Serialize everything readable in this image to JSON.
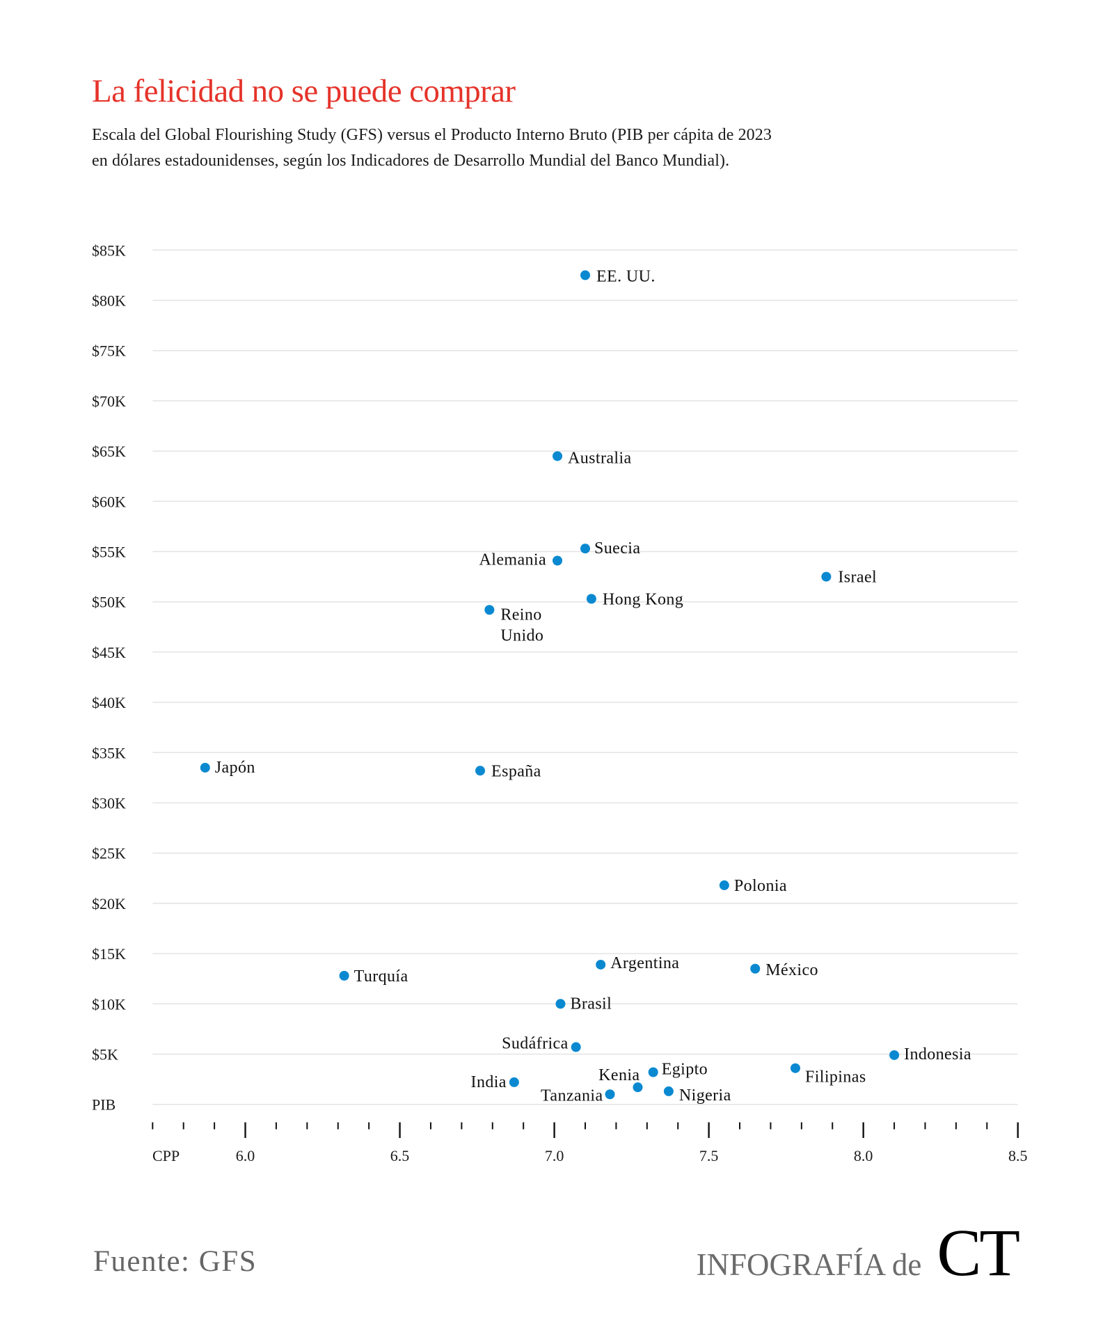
{
  "header": {
    "title": "La felicidad no se puede comprar",
    "subtitle_line1": "Escala del Global Flourishing Study (GFS) versus el Producto Interno Bruto (PIB per cápita de 2023",
    "subtitle_line2": "en dólares estadounidenses, según los Indicadores de Desarrollo Mundial del Banco Mundial)."
  },
  "footer": {
    "source": "Fuente: GFS",
    "credit_text": "INFOGRAFÍA de",
    "credit_logo": "CT"
  },
  "colors": {
    "title": "#e5332a",
    "point": "#0a89d1",
    "grid": "#e3e3e3",
    "text": "#1a1a1a",
    "footer": "#666666"
  },
  "chart_data": {
    "type": "scatter",
    "title": "La felicidad no se puede comprar",
    "xlabel": "CPP",
    "ylabel": "PIB",
    "xlim": [
      5.7,
      8.5
    ],
    "ylim": [
      0,
      85000
    ],
    "grid": true,
    "legend": "none",
    "x_ticks_major": [
      6.0,
      6.5,
      7.0,
      7.5,
      8.0,
      8.5
    ],
    "x_tick_labels": [
      "6.0",
      "6.5",
      "7.0",
      "7.5",
      "8.0",
      "8.5"
    ],
    "x_ticks_minor_step": 0.1,
    "y_ticks": [
      0,
      5000,
      10000,
      15000,
      20000,
      25000,
      30000,
      35000,
      40000,
      45000,
      50000,
      55000,
      60000,
      65000,
      70000,
      75000,
      80000,
      85000
    ],
    "y_tick_labels": [
      "PIB",
      "$5K",
      "$10K",
      "$15K",
      "$20K",
      "$25K",
      "$30K",
      "$35K",
      "$40K",
      "$45K",
      "$50K",
      "$55K",
      "$60K",
      "$65K",
      "$70K",
      "$75K",
      "$80K",
      "$85K"
    ],
    "points": [
      {
        "label": "EE. UU.",
        "x": 7.1,
        "y": 82500
      },
      {
        "label": "Australia",
        "x": 7.01,
        "y": 64500
      },
      {
        "label": "Suecia",
        "x": 7.1,
        "y": 55300
      },
      {
        "label": "Alemania",
        "x": 7.01,
        "y": 54100
      },
      {
        "label": "Israel",
        "x": 7.88,
        "y": 52500
      },
      {
        "label": "Hong Kong",
        "x": 7.12,
        "y": 50300
      },
      {
        "label": "Reino Unido",
        "label_lines": [
          "Reino",
          "Unido"
        ],
        "x": 6.79,
        "y": 49200
      },
      {
        "label": "Japón",
        "x": 5.87,
        "y": 33500
      },
      {
        "label": "España",
        "x": 6.76,
        "y": 33200
      },
      {
        "label": "Polonia",
        "x": 7.55,
        "y": 21800
      },
      {
        "label": "Argentina",
        "x": 7.15,
        "y": 13900
      },
      {
        "label": "México",
        "x": 7.65,
        "y": 13500
      },
      {
        "label": "Turquía",
        "x": 6.32,
        "y": 12800
      },
      {
        "label": "Brasil",
        "x": 7.02,
        "y": 10000
      },
      {
        "label": "Sudáfrica",
        "x": 7.07,
        "y": 5700
      },
      {
        "label": "Indonesia",
        "x": 8.1,
        "y": 4900
      },
      {
        "label": "Filipinas",
        "x": 7.78,
        "y": 3600
      },
      {
        "label": "Egipto",
        "x": 7.32,
        "y": 3200
      },
      {
        "label": "India",
        "x": 6.87,
        "y": 2200
      },
      {
        "label": "Kenia",
        "x": 7.27,
        "y": 1700
      },
      {
        "label": "Nigeria",
        "x": 7.37,
        "y": 1300
      },
      {
        "label": "Tanzania",
        "x": 7.18,
        "y": 1000
      }
    ]
  }
}
